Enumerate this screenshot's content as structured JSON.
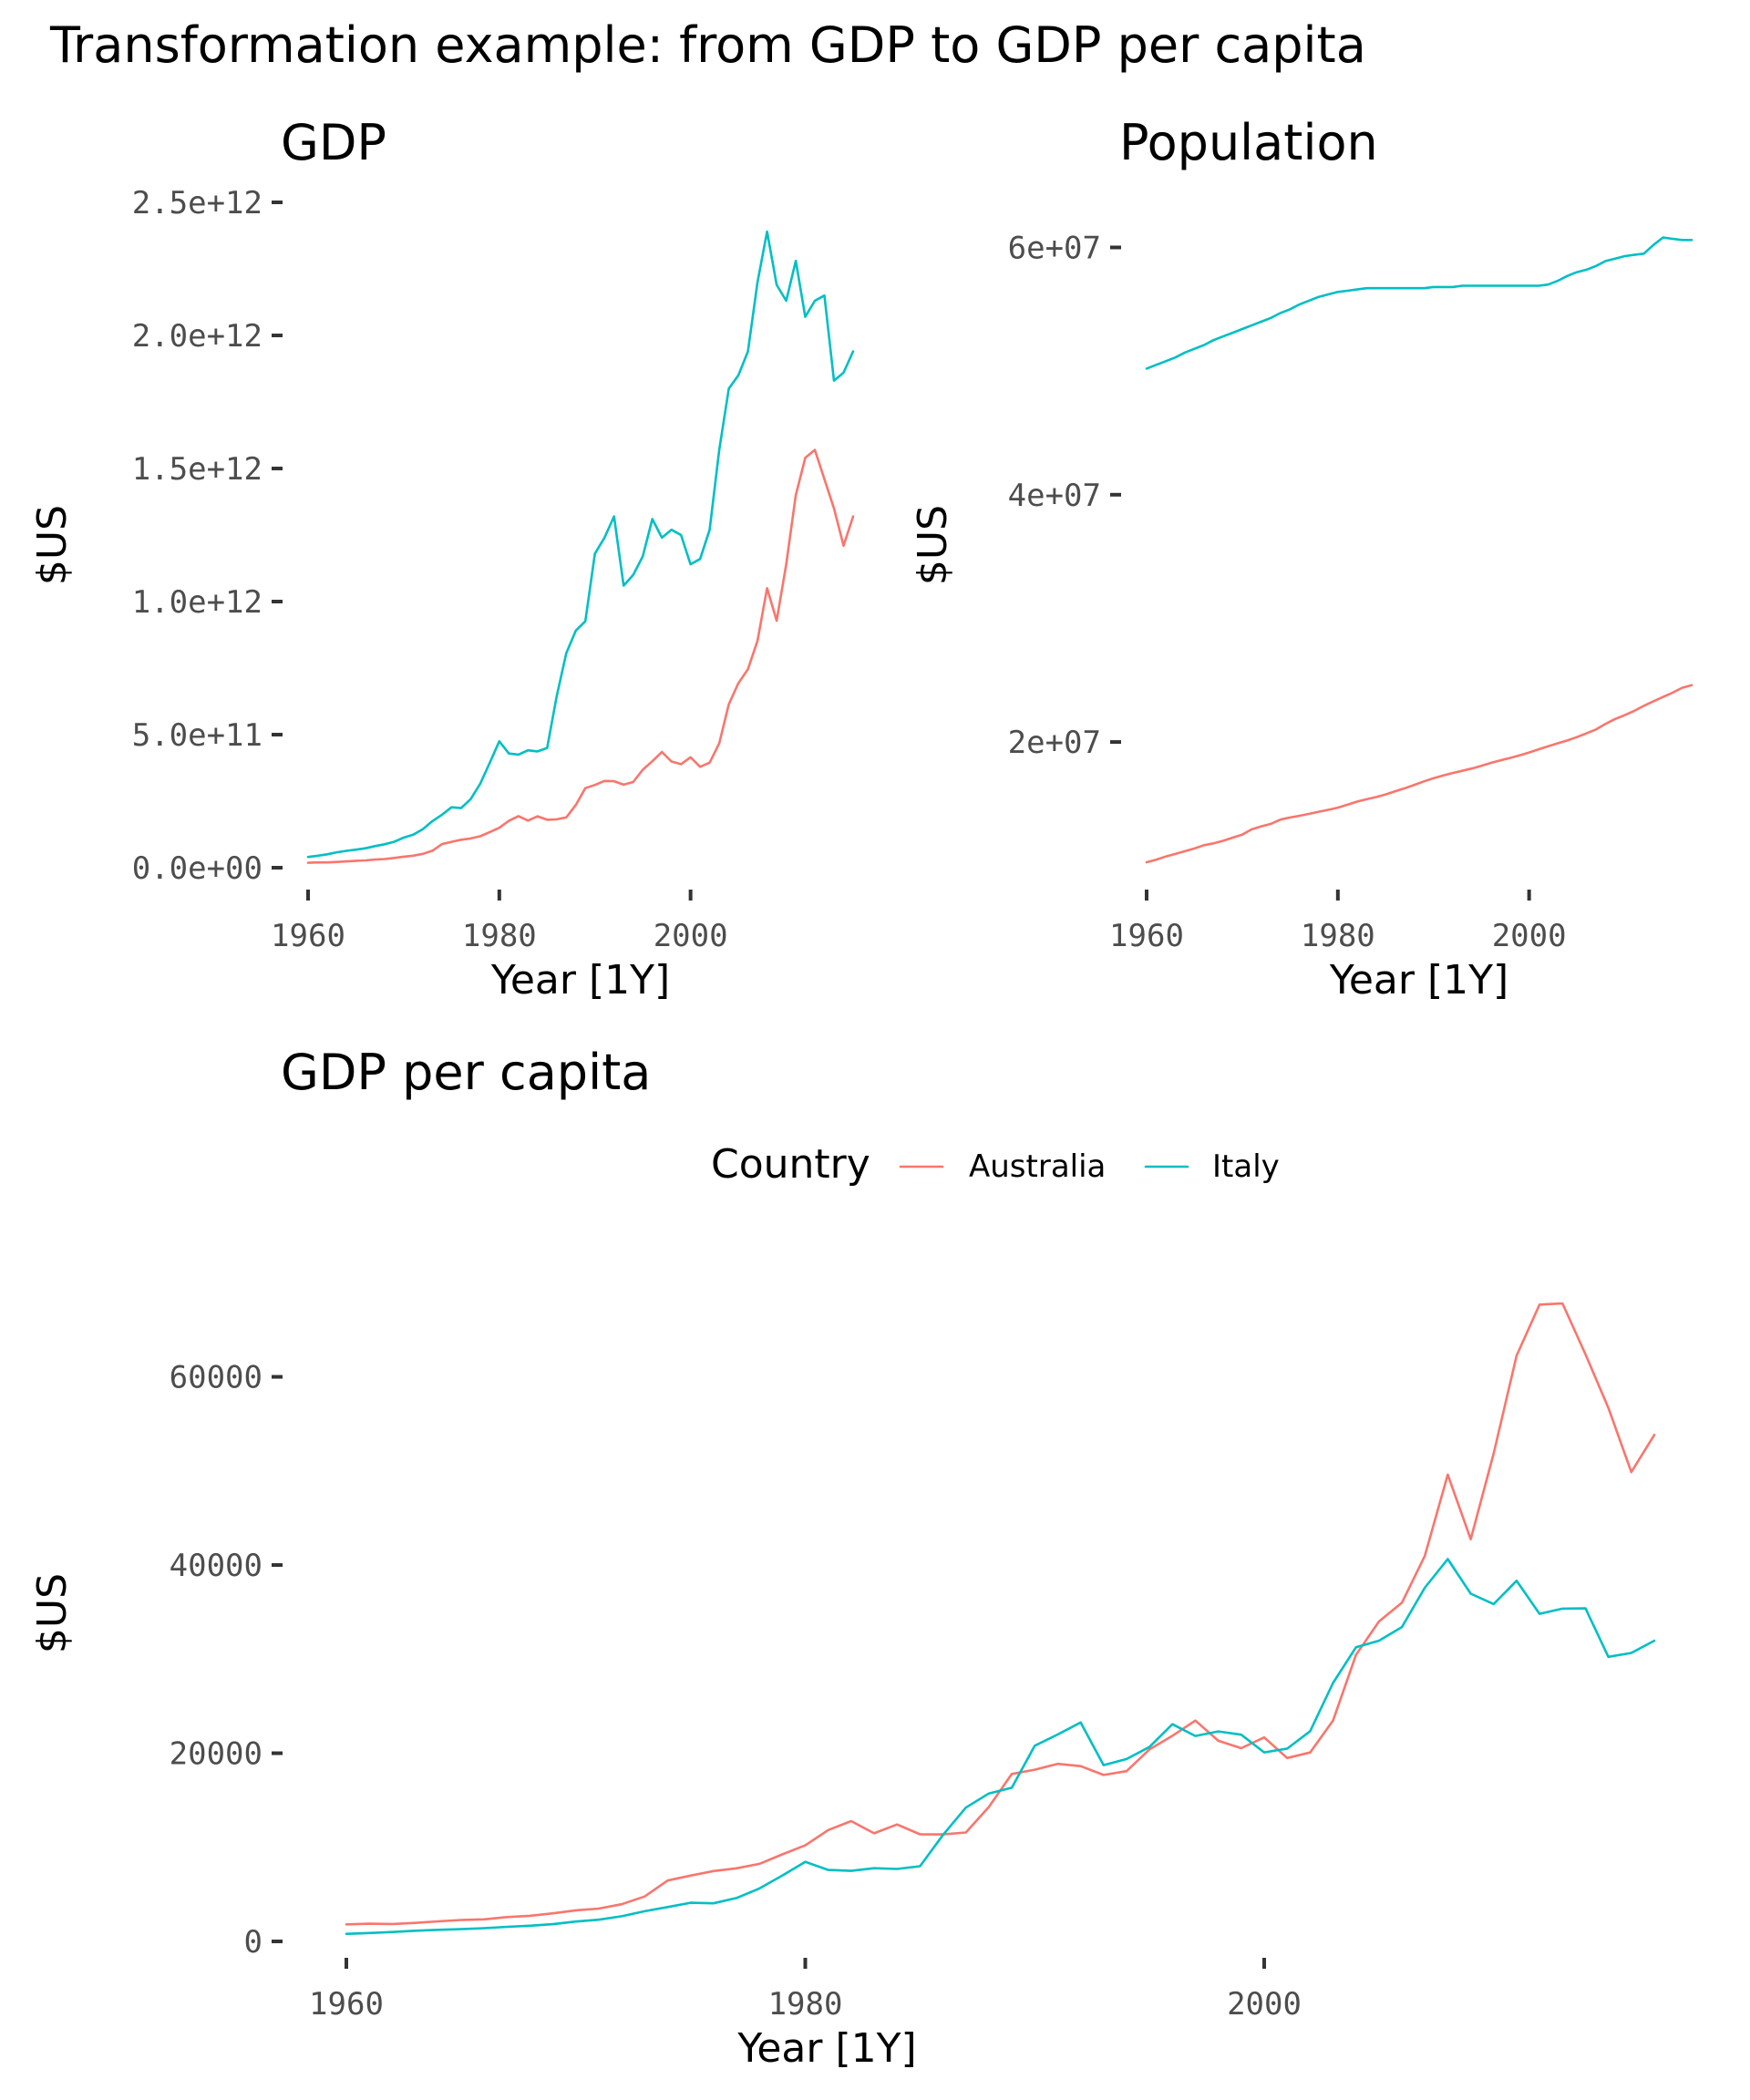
{
  "title": "Transformation example: from GDP to GDP per capita",
  "colors": {
    "Australia": "#F8766D",
    "Italy": "#00BFC4"
  },
  "legend": {
    "title": "Country",
    "items": [
      "Australia",
      "Italy"
    ]
  },
  "chart_data": [
    {
      "type": "line",
      "title": "GDP",
      "xlabel": "Year [1Y]",
      "ylabel": "$US",
      "xlim": [
        1960,
        2017
      ],
      "ylim": [
        0,
        2500000000000
      ],
      "x_ticks": [
        1960,
        1980,
        2000
      ],
      "y_ticks": [
        0,
        500000000000,
        1000000000000,
        1500000000000,
        2000000000000,
        2500000000000
      ],
      "y_tick_labels": [
        "0.0e+00",
        "5.0e+11",
        "1.0e+12",
        "1.5e+12",
        "2.0e+12",
        "2.5e+12"
      ],
      "x": [
        1960,
        1961,
        1962,
        1963,
        1964,
        1965,
        1966,
        1967,
        1968,
        1969,
        1970,
        1971,
        1972,
        1973,
        1974,
        1975,
        1976,
        1977,
        1978,
        1979,
        1980,
        1981,
        1982,
        1983,
        1984,
        1985,
        1986,
        1987,
        1988,
        1989,
        1990,
        1991,
        1992,
        1993,
        1994,
        1995,
        1996,
        1997,
        1998,
        1999,
        2000,
        2001,
        2002,
        2003,
        2004,
        2005,
        2006,
        2007,
        2008,
        2009,
        2010,
        2011,
        2012,
        2013,
        2014,
        2015,
        2016,
        2017
      ],
      "series": [
        {
          "name": "Australia",
          "values": [
            18600000000,
            19700000000,
            19900000000,
            21500000000,
            23800000000,
            25900000000,
            27300000000,
            30400000000,
            32700000000,
            36600000000,
            41300000000,
            45100000000,
            52000000000,
            63700000000,
            88800000000,
            97200000000,
            105000000000,
            110000000000,
            118000000000,
            134000000000,
            150000000000,
            176000000000,
            194000000000,
            177000000000,
            193000000000,
            180000000000,
            182000000000,
            189000000000,
            236000000000,
            299000000000,
            311000000000,
            326000000000,
            325000000000,
            312000000000,
            322000000000,
            368000000000,
            400000000000,
            435000000000,
            399000000000,
            389000000000,
            415000000000,
            379000000000,
            395000000000,
            467000000000,
            614000000000,
            693000000000,
            746000000000,
            853000000000,
            1050000000000,
            928000000000,
            1140000000000,
            1400000000000,
            1540000000000,
            1570000000000,
            1460000000000,
            1350000000000,
            1210000000000,
            1320000000000
          ]
        },
        {
          "name": "Italy",
          "values": [
            40400000000,
            44800000000,
            50400000000,
            58000000000,
            63200000000,
            67900000000,
            73000000000,
            81300000000,
            87900000000,
            97100000000,
            113000000000,
            124000000000,
            145000000000,
            175000000000,
            199000000000,
            227000000000,
            224000000000,
            258000000000,
            315000000000,
            394000000000,
            475000000000,
            429000000000,
            425000000000,
            441000000000,
            437000000000,
            450000000000,
            645000000000,
            806000000000,
            891000000000,
            926000000000,
            1180000000000,
            1240000000000,
            1320000000000,
            1060000000000,
            1100000000000,
            1170000000000,
            1310000000000,
            1240000000000,
            1270000000000,
            1250000000000,
            1140000000000,
            1160000000000,
            1270000000000,
            1570000000000,
            1800000000000,
            1850000000000,
            1940000000000,
            2200000000000,
            2390000000000,
            2190000000000,
            2130000000000,
            2280000000000,
            2070000000000,
            2130000000000,
            2150000000000,
            1830000000000,
            1860000000000,
            1940000000000
          ]
        }
      ]
    },
    {
      "type": "line",
      "title": "Population",
      "xlabel": "Year [1Y]",
      "ylabel": "$US",
      "xlim": [
        1960,
        2017
      ],
      "ylim": [
        10276000,
        60551000
      ],
      "x_ticks": [
        1960,
        1980,
        2000
      ],
      "y_ticks": [
        20000000,
        40000000,
        60000000
      ],
      "y_tick_labels": [
        "2e+07",
        "4e+07",
        "6e+07"
      ],
      "x": [
        1960,
        1961,
        1962,
        1963,
        1964,
        1965,
        1966,
        1967,
        1968,
        1969,
        1970,
        1971,
        1972,
        1973,
        1974,
        1975,
        1976,
        1977,
        1978,
        1979,
        1980,
        1981,
        1982,
        1983,
        1984,
        1985,
        1986,
        1987,
        1988,
        1989,
        1990,
        1991,
        1992,
        1993,
        1994,
        1995,
        1996,
        1997,
        1998,
        1999,
        2000,
        2001,
        2002,
        2003,
        2004,
        2005,
        2006,
        2007,
        2008,
        2009,
        2010,
        2011,
        2012,
        2013,
        2014,
        2015,
        2016,
        2017
      ],
      "series": [
        {
          "name": "Australia",
          "values": [
            10276000,
            10483000,
            10742000,
            10950000,
            11167000,
            11388000,
            11651000,
            11799000,
            12009000,
            12263000,
            12507000,
            12937000,
            13177000,
            13380000,
            13723000,
            13893000,
            14033000,
            14192000,
            14358000,
            14514000,
            14692000,
            14927000,
            15178000,
            15369000,
            15544000,
            15758000,
            16018000,
            16264000,
            16532000,
            16814000,
            17065000,
            17284000,
            17495000,
            17667000,
            17855000,
            18072000,
            18311000,
            18517000,
            18711000,
            18926000,
            19153000,
            19413000,
            19651000,
            19895000,
            20127000,
            20395000,
            20698000,
            21016000,
            21475000,
            21866000,
            22172000,
            22522000,
            22928000,
            23298000,
            23640000,
            23984000,
            24385000,
            24602000
          ]
        },
        {
          "name": "Italy",
          "values": [
            50200000,
            50500000,
            50800000,
            51100000,
            51500000,
            51800000,
            52100000,
            52500000,
            52800000,
            53100000,
            53400000,
            53700000,
            54000000,
            54300000,
            54700000,
            55000000,
            55400000,
            55700000,
            56000000,
            56200000,
            56400000,
            56500000,
            56600000,
            56700000,
            56700000,
            56700000,
            56700000,
            56700000,
            56700000,
            56700000,
            56800000,
            56800000,
            56800000,
            56900000,
            56900000,
            56900000,
            56900000,
            56900000,
            56900000,
            56900000,
            56900000,
            56900000,
            57000000,
            57300000,
            57700000,
            58000000,
            58200000,
            58500000,
            58900000,
            59100000,
            59300000,
            59400000,
            59500000,
            60200000,
            60800000,
            60700000,
            60600000,
            60600000
          ]
        }
      ]
    },
    {
      "type": "line",
      "title": "GDP per capita",
      "xlabel": "Year [1Y]",
      "ylabel": "$US",
      "xlim": [
        1960,
        2017
      ],
      "ylim": [
        0,
        68000
      ],
      "x_ticks": [
        1960,
        1980,
        2000
      ],
      "y_ticks": [
        0,
        20000,
        40000,
        60000
      ],
      "y_tick_labels": [
        "0",
        "20000",
        "40000",
        "60000"
      ],
      "x": [
        1960,
        1961,
        1962,
        1963,
        1964,
        1965,
        1966,
        1967,
        1968,
        1969,
        1970,
        1971,
        1972,
        1973,
        1974,
        1975,
        1976,
        1977,
        1978,
        1979,
        1980,
        1981,
        1982,
        1983,
        1984,
        1985,
        1986,
        1987,
        1988,
        1989,
        1990,
        1991,
        1992,
        1993,
        1994,
        1995,
        1996,
        1997,
        1998,
        1999,
        2000,
        2001,
        2002,
        2003,
        2004,
        2005,
        2006,
        2007,
        2008,
        2009,
        2010,
        2011,
        2012,
        2013,
        2014,
        2015,
        2016,
        2017
      ],
      "series": [
        {
          "name": "Australia",
          "values": [
            1807,
            1875,
            1852,
            1964,
            2128,
            2277,
            2340,
            2582,
            2726,
            2988,
            3302,
            3490,
            3955,
            4776,
            6475,
            6993,
            7479,
            7768,
            8241,
            9247,
            10208,
            11834,
            12789,
            11487,
            12424,
            11377,
            11376,
            11578,
            14292,
            17791,
            18248,
            18871,
            18624,
            17692,
            18092,
            20403,
            21850,
            23469,
            21321,
            20537,
            21679,
            19491,
            20082,
            23465,
            30441,
            33999,
            35991,
            40960,
            49602,
            42742,
            51874,
            62245,
            67677,
            67793,
            62390,
            56710,
            49875,
            53831
          ]
        },
        {
          "name": "Italy",
          "values": [
            804,
            887,
            993,
            1134,
            1227,
            1311,
            1400,
            1548,
            1666,
            1828,
            2114,
            2306,
            2671,
            3205,
            3651,
            4107,
            4047,
            4610,
            5624,
            6990,
            8457,
            7597,
            7501,
            7776,
            7698,
            7991,
            11315,
            14217,
            15721,
            16330,
            20797,
            21993,
            23271,
            18730,
            19380,
            20663,
            23082,
            21829,
            22318,
            21973,
            20088,
            20484,
            22340,
            27466,
            31259,
            31958,
            33410,
            37580,
            40640,
            36951,
            35849,
            38334,
            34814,
            35370,
            35397,
            30242,
            30661,
            31953
          ]
        }
      ]
    }
  ]
}
